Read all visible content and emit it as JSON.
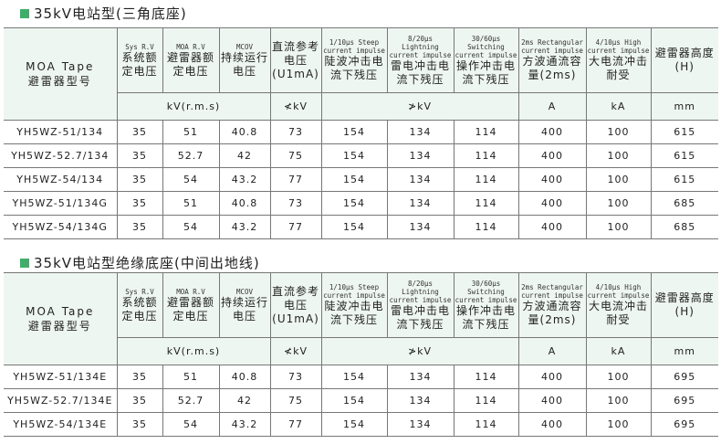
{
  "sections": [
    {
      "title": "35kV电站型(三角底座)",
      "rows": [
        [
          "YH5WZ-51/134",
          "35",
          "51",
          "40.8",
          "73",
          "154",
          "134",
          "114",
          "400",
          "100",
          "615"
        ],
        [
          "YH5WZ-52.7/134",
          "35",
          "52.7",
          "42",
          "75",
          "154",
          "134",
          "114",
          "400",
          "100",
          "615"
        ],
        [
          "YH5WZ-54/134",
          "35",
          "54",
          "43.2",
          "77",
          "154",
          "134",
          "114",
          "400",
          "100",
          "615"
        ],
        [
          "YH5WZ-51/134G",
          "35",
          "51",
          "40.8",
          "73",
          "154",
          "134",
          "114",
          "400",
          "100",
          "685"
        ],
        [
          "YH5WZ-54/134G",
          "35",
          "54",
          "43.2",
          "77",
          "154",
          "134",
          "114",
          "400",
          "100",
          "685"
        ]
      ]
    },
    {
      "title": "35kV电站型绝缘底座(中间出地线)",
      "rows": [
        [
          "YH5WZ-51/134E",
          "35",
          "51",
          "40.8",
          "73",
          "154",
          "134",
          "114",
          "400",
          "100",
          "695"
        ],
        [
          "YH5WZ-52.7/134E",
          "35",
          "52.7",
          "42",
          "75",
          "154",
          "134",
          "114",
          "400",
          "100",
          "695"
        ],
        [
          "YH5WZ-54/134E",
          "35",
          "54",
          "43.2",
          "77",
          "154",
          "134",
          "114",
          "400",
          "100",
          "695"
        ]
      ]
    }
  ],
  "header": {
    "model_en": "MOA  Tape",
    "model_zh": "避雷器型号",
    "cols": [
      {
        "en": "Sys R.V",
        "zh": "系统额定电压"
      },
      {
        "en": "MOA  R.V",
        "zh": "避雷器额定电压"
      },
      {
        "en": "MCOV",
        "zh": "持续运行电压"
      },
      {
        "en": "",
        "zh": "直流参考电压(U1mA)"
      },
      {
        "en": "1/10μs Steep current impulse",
        "zh": "陡波冲击电流下残压"
      },
      {
        "en": "8/20μs Lightning current impulse",
        "zh": "雷电冲击电流下残压"
      },
      {
        "en": "30/60μs Switching current impulse",
        "zh": "操作冲击电流下残压"
      },
      {
        "en": "2ms Rectangular current impulse",
        "zh": "方波通流容量(2ms)"
      },
      {
        "en": "4/10μs High current impulse",
        "zh": "大电流冲击耐受"
      },
      {
        "en": "",
        "zh": "避雷器高度(H)"
      }
    ],
    "units": [
      "kV(r.m.s)",
      "≮kV",
      "≯kV",
      "A",
      "kA",
      "mm"
    ]
  },
  "colors": {
    "header_bg": "#eef6f1",
    "title_square": "#3fae6a"
  }
}
